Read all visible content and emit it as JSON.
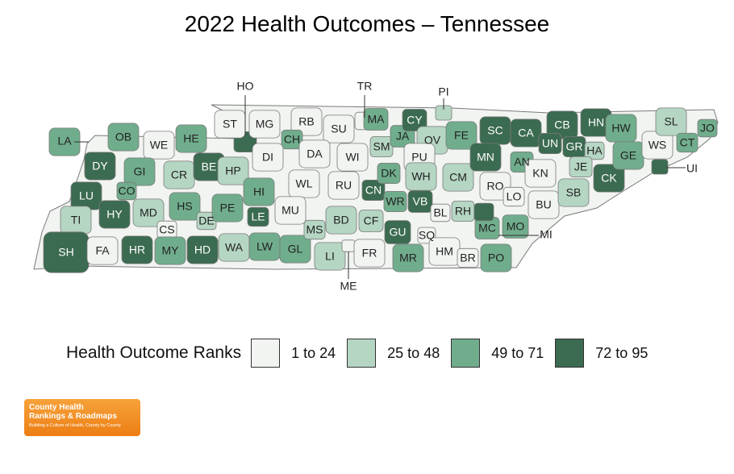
{
  "title": "2022 Health Outcomes – Tennessee",
  "colors": {
    "rank_1_24": "#f1f4f1",
    "rank_25_48": "#b5d6c3",
    "rank_49_71": "#70ad8c",
    "rank_72_95": "#3b6b50",
    "border": "#7a7a7a",
    "logo_orange": "#f08a1c"
  },
  "legend": {
    "title": "Health Outcome Ranks",
    "items": [
      {
        "label": "1 to 24",
        "class": "rank_1_24"
      },
      {
        "label": "25 to 48",
        "class": "rank_25_48"
      },
      {
        "label": "49 to 71",
        "class": "rank_49_71"
      },
      {
        "label": "72 to 95",
        "class": "rank_72_95"
      }
    ]
  },
  "counties": [
    {
      "code": "LA",
      "class": "rank_49_71"
    },
    {
      "code": "OB",
      "class": "rank_49_71"
    },
    {
      "code": "WE",
      "class": "rank_1_24"
    },
    {
      "code": "HE",
      "class": "rank_49_71"
    },
    {
      "code": "DY",
      "class": "rank_72_95"
    },
    {
      "code": "GI",
      "class": "rank_49_71"
    },
    {
      "code": "CR",
      "class": "rank_25_48"
    },
    {
      "code": "BE",
      "class": "rank_72_95"
    },
    {
      "code": "HP",
      "class": "rank_25_48"
    },
    {
      "code": "CO",
      "class": "rank_49_71"
    },
    {
      "code": "LU",
      "class": "rank_72_95"
    },
    {
      "code": "HY",
      "class": "rank_72_95"
    },
    {
      "code": "MD",
      "class": "rank_25_48"
    },
    {
      "code": "HS",
      "class": "rank_49_71"
    },
    {
      "code": "DE",
      "class": "rank_25_48"
    },
    {
      "code": "TI",
      "class": "rank_25_48"
    },
    {
      "code": "CS",
      "class": "rank_1_24"
    },
    {
      "code": "SH",
      "class": "rank_72_95"
    },
    {
      "code": "FA",
      "class": "rank_1_24"
    },
    {
      "code": "HR",
      "class": "rank_72_95"
    },
    {
      "code": "MY",
      "class": "rank_49_71"
    },
    {
      "code": "HD",
      "class": "rank_72_95"
    },
    {
      "code": "HO",
      "class": "rank_72_95"
    },
    {
      "code": "ST",
      "class": "rank_1_24"
    },
    {
      "code": "MG",
      "class": "rank_1_24"
    },
    {
      "code": "RB",
      "class": "rank_1_24"
    },
    {
      "code": "SU",
      "class": "rank_1_24"
    },
    {
      "code": "TR",
      "class": "rank_1_24"
    },
    {
      "code": "CH",
      "class": "rank_49_71"
    },
    {
      "code": "DI",
      "class": "rank_1_24"
    },
    {
      "code": "DA",
      "class": "rank_1_24"
    },
    {
      "code": "WI",
      "class": "rank_1_24"
    },
    {
      "code": "PE",
      "class": "rank_49_71"
    },
    {
      "code": "HI",
      "class": "rank_49_71"
    },
    {
      "code": "WL",
      "class": "rank_1_24"
    },
    {
      "code": "RU",
      "class": "rank_1_24"
    },
    {
      "code": "MU",
      "class": "rank_1_24"
    },
    {
      "code": "LE",
      "class": "rank_72_95"
    },
    {
      "code": "WA",
      "class": "rank_25_48"
    },
    {
      "code": "LW",
      "class": "rank_49_71"
    },
    {
      "code": "GL",
      "class": "rank_49_71"
    },
    {
      "code": "MS",
      "class": "rank_25_48"
    },
    {
      "code": "BD",
      "class": "rank_25_48"
    },
    {
      "code": "LI",
      "class": "rank_25_48"
    },
    {
      "code": "ME",
      "class": "rank_1_24"
    },
    {
      "code": "FR",
      "class": "rank_1_24"
    },
    {
      "code": "CF",
      "class": "rank_25_48"
    },
    {
      "code": "CN",
      "class": "rank_72_95"
    },
    {
      "code": "MA",
      "class": "rank_49_71"
    },
    {
      "code": "SM",
      "class": "rank_25_48"
    },
    {
      "code": "JA",
      "class": "rank_49_71"
    },
    {
      "code": "CY",
      "class": "rank_72_95"
    },
    {
      "code": "OV",
      "class": "rank_25_48"
    },
    {
      "code": "PU",
      "class": "rank_1_24"
    },
    {
      "code": "DK",
      "class": "rank_49_71"
    },
    {
      "code": "WH",
      "class": "rank_25_48"
    },
    {
      "code": "WR",
      "class": "rank_49_71"
    },
    {
      "code": "VB",
      "class": "rank_72_95"
    },
    {
      "code": "GU",
      "class": "rank_72_95"
    },
    {
      "code": "MR",
      "class": "rank_49_71"
    },
    {
      "code": "SQ",
      "class": "rank_1_24"
    },
    {
      "code": "HM",
      "class": "rank_1_24"
    },
    {
      "code": "BR",
      "class": "rank_1_24"
    },
    {
      "code": "BL",
      "class": "rank_1_24"
    },
    {
      "code": "RH",
      "class": "rank_25_48"
    },
    {
      "code": "MC",
      "class": "rank_49_71"
    },
    {
      "code": "PO",
      "class": "rank_49_71"
    },
    {
      "code": "MO",
      "class": "rank_49_71"
    },
    {
      "code": "MI",
      "class": "rank_72_95"
    },
    {
      "code": "CM",
      "class": "rank_25_48"
    },
    {
      "code": "FE",
      "class": "rank_49_71"
    },
    {
      "code": "PI",
      "class": "rank_25_48"
    },
    {
      "code": "SC",
      "class": "rank_72_95"
    },
    {
      "code": "CA",
      "class": "rank_72_95"
    },
    {
      "code": "CB",
      "class": "rank_72_95"
    },
    {
      "code": "UN",
      "class": "rank_72_95"
    },
    {
      "code": "HN",
      "class": "rank_72_95"
    },
    {
      "code": "GR",
      "class": "rank_72_95"
    },
    {
      "code": "HA",
      "class": "rank_25_48"
    },
    {
      "code": "MN",
      "class": "rank_72_95"
    },
    {
      "code": "AN",
      "class": "rank_49_71"
    },
    {
      "code": "KN",
      "class": "rank_1_24"
    },
    {
      "code": "RO",
      "class": "rank_1_24"
    },
    {
      "code": "LO",
      "class": "rank_1_24"
    },
    {
      "code": "BU",
      "class": "rank_1_24"
    },
    {
      "code": "JE",
      "class": "rank_25_48"
    },
    {
      "code": "SB",
      "class": "rank_25_48"
    },
    {
      "code": "CK",
      "class": "rank_72_95"
    },
    {
      "code": "HW",
      "class": "rank_49_71"
    },
    {
      "code": "GE",
      "class": "rank_49_71"
    },
    {
      "code": "WS",
      "class": "rank_1_24"
    },
    {
      "code": "SL",
      "class": "rank_25_48"
    },
    {
      "code": "CT",
      "class": "rank_49_71"
    },
    {
      "code": "JO",
      "class": "rank_49_71"
    },
    {
      "code": "UI",
      "class": "rank_72_95"
    }
  ],
  "logo": {
    "line1": "County Health",
    "line2": "Rankings & Roadmaps",
    "tagline": "Building a Culture of Health, County by County"
  }
}
